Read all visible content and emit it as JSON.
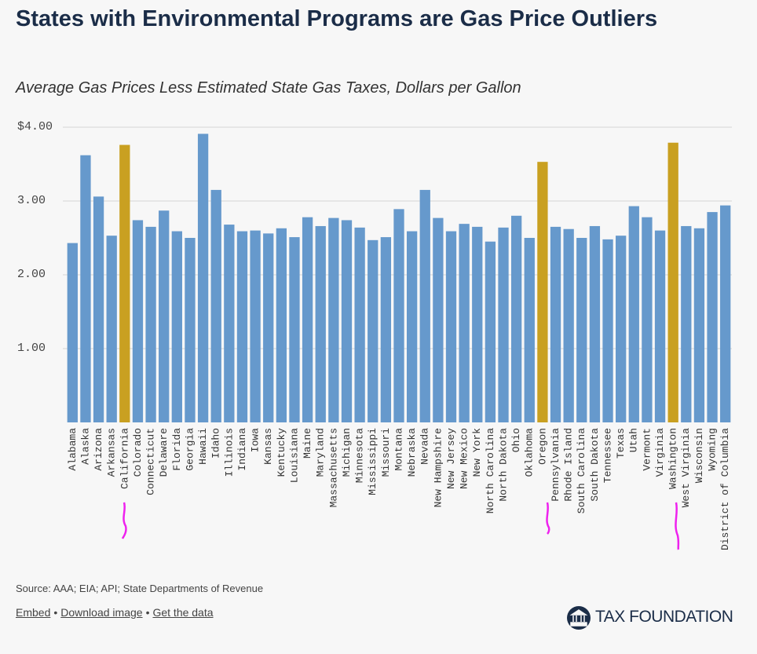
{
  "chart_data": {
    "type": "bar",
    "title": "States with Environmental Programs are Gas Price Outliers",
    "subtitle": "Average Gas Prices Less Estimated State Gas Taxes, Dollars per Gallon",
    "categories": [
      "Alabama",
      "Alaska",
      "Arizona",
      "Arkansas",
      "California",
      "Colorado",
      "Connecticut",
      "Delaware",
      "Florida",
      "Georgia",
      "Hawaii",
      "Idaho",
      "Illinois",
      "Indiana",
      "Iowa",
      "Kansas",
      "Kentucky",
      "Louisiana",
      "Maine",
      "Maryland",
      "Massachusetts",
      "Michigan",
      "Minnesota",
      "Mississippi",
      "Missouri",
      "Montana",
      "Nebraska",
      "Nevada",
      "New Hampshire",
      "New Jersey",
      "New Mexico",
      "New York",
      "North Carolina",
      "North Dakota",
      "Ohio",
      "Oklahoma",
      "Oregon",
      "Pennsylvania",
      "Rhode Island",
      "South Carolina",
      "South Dakota",
      "Tennessee",
      "Texas",
      "Utah",
      "Vermont",
      "Virginia",
      "Washington",
      "West Virginia",
      "Wisconsin",
      "Wyoming",
      "District of Columbia"
    ],
    "values": [
      2.43,
      3.62,
      3.06,
      2.53,
      3.76,
      2.74,
      2.65,
      2.87,
      2.59,
      2.5,
      3.91,
      3.15,
      2.68,
      2.59,
      2.6,
      2.56,
      2.63,
      2.51,
      2.78,
      2.66,
      2.77,
      2.74,
      2.64,
      2.47,
      2.51,
      2.89,
      2.59,
      3.15,
      2.77,
      2.59,
      2.69,
      2.65,
      2.45,
      2.64,
      2.8,
      2.5,
      3.53,
      2.65,
      2.62,
      2.5,
      2.66,
      2.48,
      2.53,
      2.93,
      2.78,
      2.6,
      3.79,
      2.66,
      2.63,
      2.85,
      2.94
    ],
    "colors": [
      "#6699cc",
      "#6699cc",
      "#6699cc",
      "#6699cc",
      "#c9a021",
      "#6699cc",
      "#6699cc",
      "#6699cc",
      "#6699cc",
      "#6699cc",
      "#6699cc",
      "#6699cc",
      "#6699cc",
      "#6699cc",
      "#6699cc",
      "#6699cc",
      "#6699cc",
      "#6699cc",
      "#6699cc",
      "#6699cc",
      "#6699cc",
      "#6699cc",
      "#6699cc",
      "#6699cc",
      "#6699cc",
      "#6699cc",
      "#6699cc",
      "#6699cc",
      "#6699cc",
      "#6699cc",
      "#6699cc",
      "#6699cc",
      "#6699cc",
      "#6699cc",
      "#6699cc",
      "#6699cc",
      "#c9a021",
      "#6699cc",
      "#6699cc",
      "#6699cc",
      "#6699cc",
      "#6699cc",
      "#6699cc",
      "#6699cc",
      "#6699cc",
      "#6699cc",
      "#c9a021",
      "#6699cc",
      "#6699cc",
      "#6699cc",
      "#6699cc"
    ],
    "ylim": [
      0,
      4
    ],
    "yticks": [
      {
        "value": 1,
        "label": "1.00"
      },
      {
        "value": 2,
        "label": "2.00"
      },
      {
        "value": 3,
        "label": "3.00"
      },
      {
        "value": 4,
        "label": "$4.00"
      }
    ],
    "grid": true,
    "source": "Source: AAA; EIA; API; State Departments of Revenue",
    "links": [
      "Embed",
      "Download image",
      "Get the data"
    ],
    "separator": "•",
    "brand": "TAX FOUNDATION"
  }
}
